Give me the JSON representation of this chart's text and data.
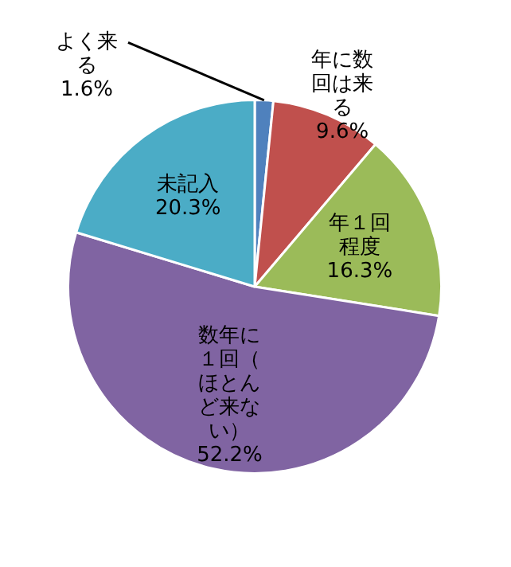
{
  "chart_data": {
    "type": "pie",
    "categories": [
      "よく来る",
      "年に数回は来る",
      "年１回程度",
      "数年に１回（ほとんど来ない）",
      "未記入"
    ],
    "values": [
      1.6,
      9.6,
      16.3,
      52.2,
      20.3
    ],
    "value_labels": [
      "1.6%",
      "9.6%",
      "16.3%",
      "52.2%",
      "20.3%"
    ],
    "colors": [
      "#4f81bd",
      "#c0504d",
      "#9bbb59",
      "#8064a2",
      "#4bacc6"
    ],
    "legend": false
  }
}
